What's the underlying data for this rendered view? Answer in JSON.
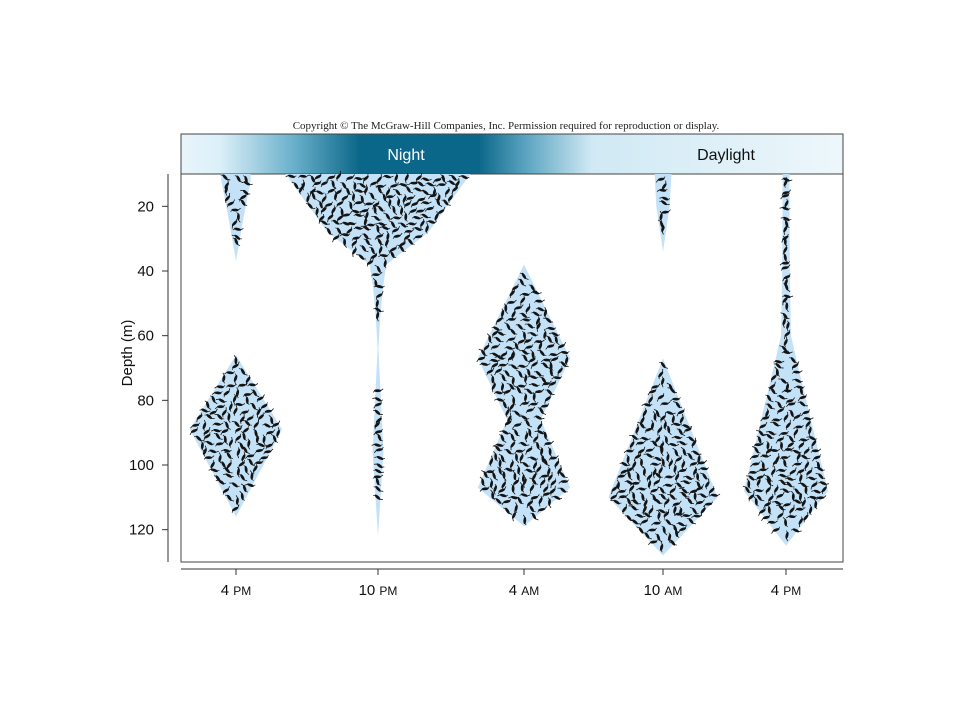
{
  "copyright": "Copyright © The McGraw-Hill Companies, Inc. Permission required for reproduction or display.",
  "chart_data": {
    "type": "area",
    "title": "",
    "xlabel": "",
    "ylabel": "Depth (m)",
    "ylim": [
      10,
      130
    ],
    "y_inverted": true,
    "yticks": [
      20,
      40,
      60,
      80,
      100,
      120
    ],
    "categories": [
      {
        "num": "4",
        "unit": "PM"
      },
      {
        "num": "10",
        "unit": "PM"
      },
      {
        "num": "4",
        "unit": "AM"
      },
      {
        "num": "10",
        "unit": "AM"
      },
      {
        "num": "4",
        "unit": "PM"
      }
    ],
    "band_labels": {
      "night": "Night",
      "daylight": "Daylight"
    },
    "colors": {
      "fill": "#c4e2f7",
      "organism": "#141414",
      "band_dark": "#0b6789",
      "band_light": "#e9f5fb",
      "axis": "#333333"
    },
    "series": [
      {
        "time": "4 PM",
        "profile": [
          [
            10,
            3.5
          ],
          [
            12,
            3.5
          ],
          [
            25,
            1.6
          ],
          [
            37,
            0
          ],
          [
            66,
            0
          ],
          [
            89,
            11
          ],
          [
            116,
            0
          ]
        ]
      },
      {
        "time": "10 PM",
        "profile": [
          [
            10,
            22
          ],
          [
            28,
            12
          ],
          [
            38,
            2
          ],
          [
            45,
            1.2
          ],
          [
            55,
            0.5
          ],
          [
            64,
            0.1
          ],
          [
            96,
            1.3
          ],
          [
            122,
            0
          ]
        ]
      },
      {
        "time": "4 AM",
        "profile": [
          [
            38,
            0
          ],
          [
            67,
            11
          ],
          [
            86,
            4
          ],
          [
            107,
            11
          ],
          [
            119,
            0
          ]
        ]
      },
      {
        "time": "10 AM",
        "profile": [
          [
            10,
            2
          ],
          [
            20,
            1.6
          ],
          [
            34,
            0
          ],
          [
            67,
            0
          ],
          [
            110,
            13
          ],
          [
            128,
            0
          ]
        ]
      },
      {
        "time": "4 PM",
        "profile": [
          [
            10,
            0.8
          ],
          [
            40,
            0.9
          ],
          [
            60,
            1.2
          ],
          [
            68,
            2.6
          ],
          [
            108,
            10
          ],
          [
            125,
            0
          ]
        ]
      }
    ]
  }
}
